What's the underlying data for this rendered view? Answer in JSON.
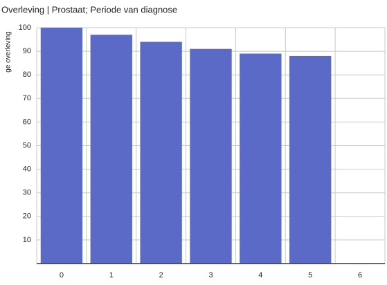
{
  "chart_data": {
    "type": "bar",
    "title": "Overleving | Prostaat; Periode van diagnose",
    "y_label": "ge overleving",
    "categories": [
      "0",
      "1",
      "2",
      "3",
      "4",
      "5",
      "6"
    ],
    "values": [
      100,
      97,
      94,
      91,
      89,
      88,
      null
    ],
    "color": "#5a6ac6",
    "ylim": [
      0,
      100
    ],
    "yticks": [
      10,
      20,
      30,
      40,
      50,
      60,
      70,
      80,
      90,
      100
    ],
    "grid": true
  }
}
